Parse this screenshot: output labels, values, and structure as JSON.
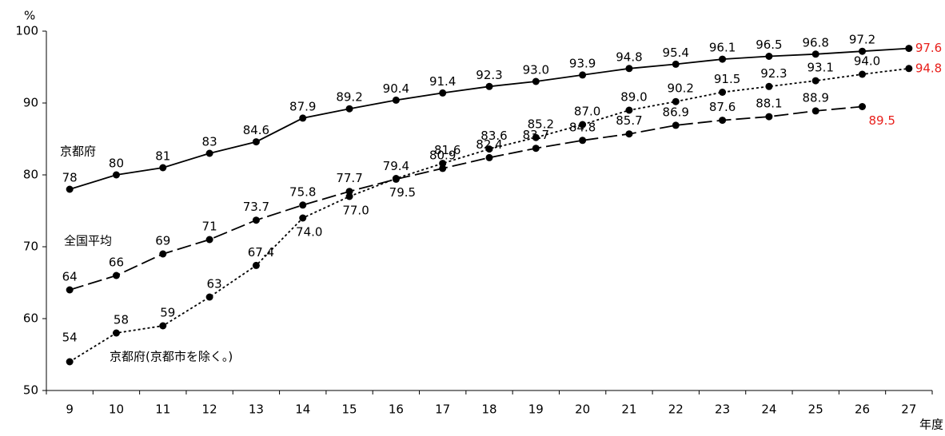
{
  "chart_data": {
    "type": "line",
    "y_unit": "%",
    "x_label": "年度",
    "categories": [
      "9",
      "10",
      "11",
      "12",
      "13",
      "14",
      "15",
      "16",
      "17",
      "18",
      "19",
      "20",
      "21",
      "22",
      "23",
      "24",
      "25",
      "26",
      "27"
    ],
    "ylim": [
      50,
      100
    ],
    "yticks": [
      50,
      60,
      70,
      80,
      90,
      100
    ],
    "last_label_color": "#e8201c",
    "series": [
      {
        "name": "京都府",
        "color": "#000000",
        "dash": "solid",
        "values": [
          78,
          80,
          81,
          83,
          84.6,
          87.9,
          89.2,
          90.4,
          91.4,
          92.3,
          93.0,
          93.9,
          94.8,
          95.4,
          96.1,
          96.5,
          96.8,
          97.2,
          97.6
        ],
        "value_labels": [
          "78",
          "80",
          "81",
          "83",
          "84.6",
          "87.9",
          "89.2",
          "90.4",
          "91.4",
          "92.3",
          "93.0",
          "93.9",
          "94.8",
          "95.4",
          "96.1",
          "96.5",
          "96.8",
          "97.2",
          "97.6"
        ]
      },
      {
        "name": "全国平均",
        "color": "#000000",
        "dash": "dashed",
        "values": [
          64,
          66,
          69,
          71,
          73.7,
          75.8,
          77.7,
          79.4,
          80.9,
          82.4,
          83.7,
          84.8,
          85.7,
          86.9,
          87.6,
          88.1,
          88.9,
          89.5,
          null
        ],
        "value_labels": [
          "64",
          "66",
          "69",
          "71",
          "73.7",
          "75.8",
          "77.7",
          "79.4",
          "80.9",
          "82.4",
          "83.7",
          "84.8",
          "85.7",
          "86.9",
          "87.6",
          "88.1",
          "88.9",
          "89.5",
          null
        ]
      },
      {
        "name": "京都府(京都市を除く。)",
        "color": "#000000",
        "dash": "dotted",
        "values": [
          54,
          58,
          59,
          63,
          67.4,
          74.0,
          77.0,
          79.5,
          81.6,
          83.6,
          85.2,
          87.0,
          89.0,
          90.2,
          91.5,
          92.3,
          93.1,
          94.0,
          94.8
        ],
        "value_labels": [
          "54",
          "58",
          "59",
          "63",
          "67.4",
          "74.0",
          "77.0",
          "79.5",
          "81.6",
          "83.6",
          "85.2",
          "87.0",
          "89.0",
          "90.2",
          "91.5",
          "92.3",
          "93.1",
          "94.0",
          "94.8"
        ]
      }
    ]
  }
}
